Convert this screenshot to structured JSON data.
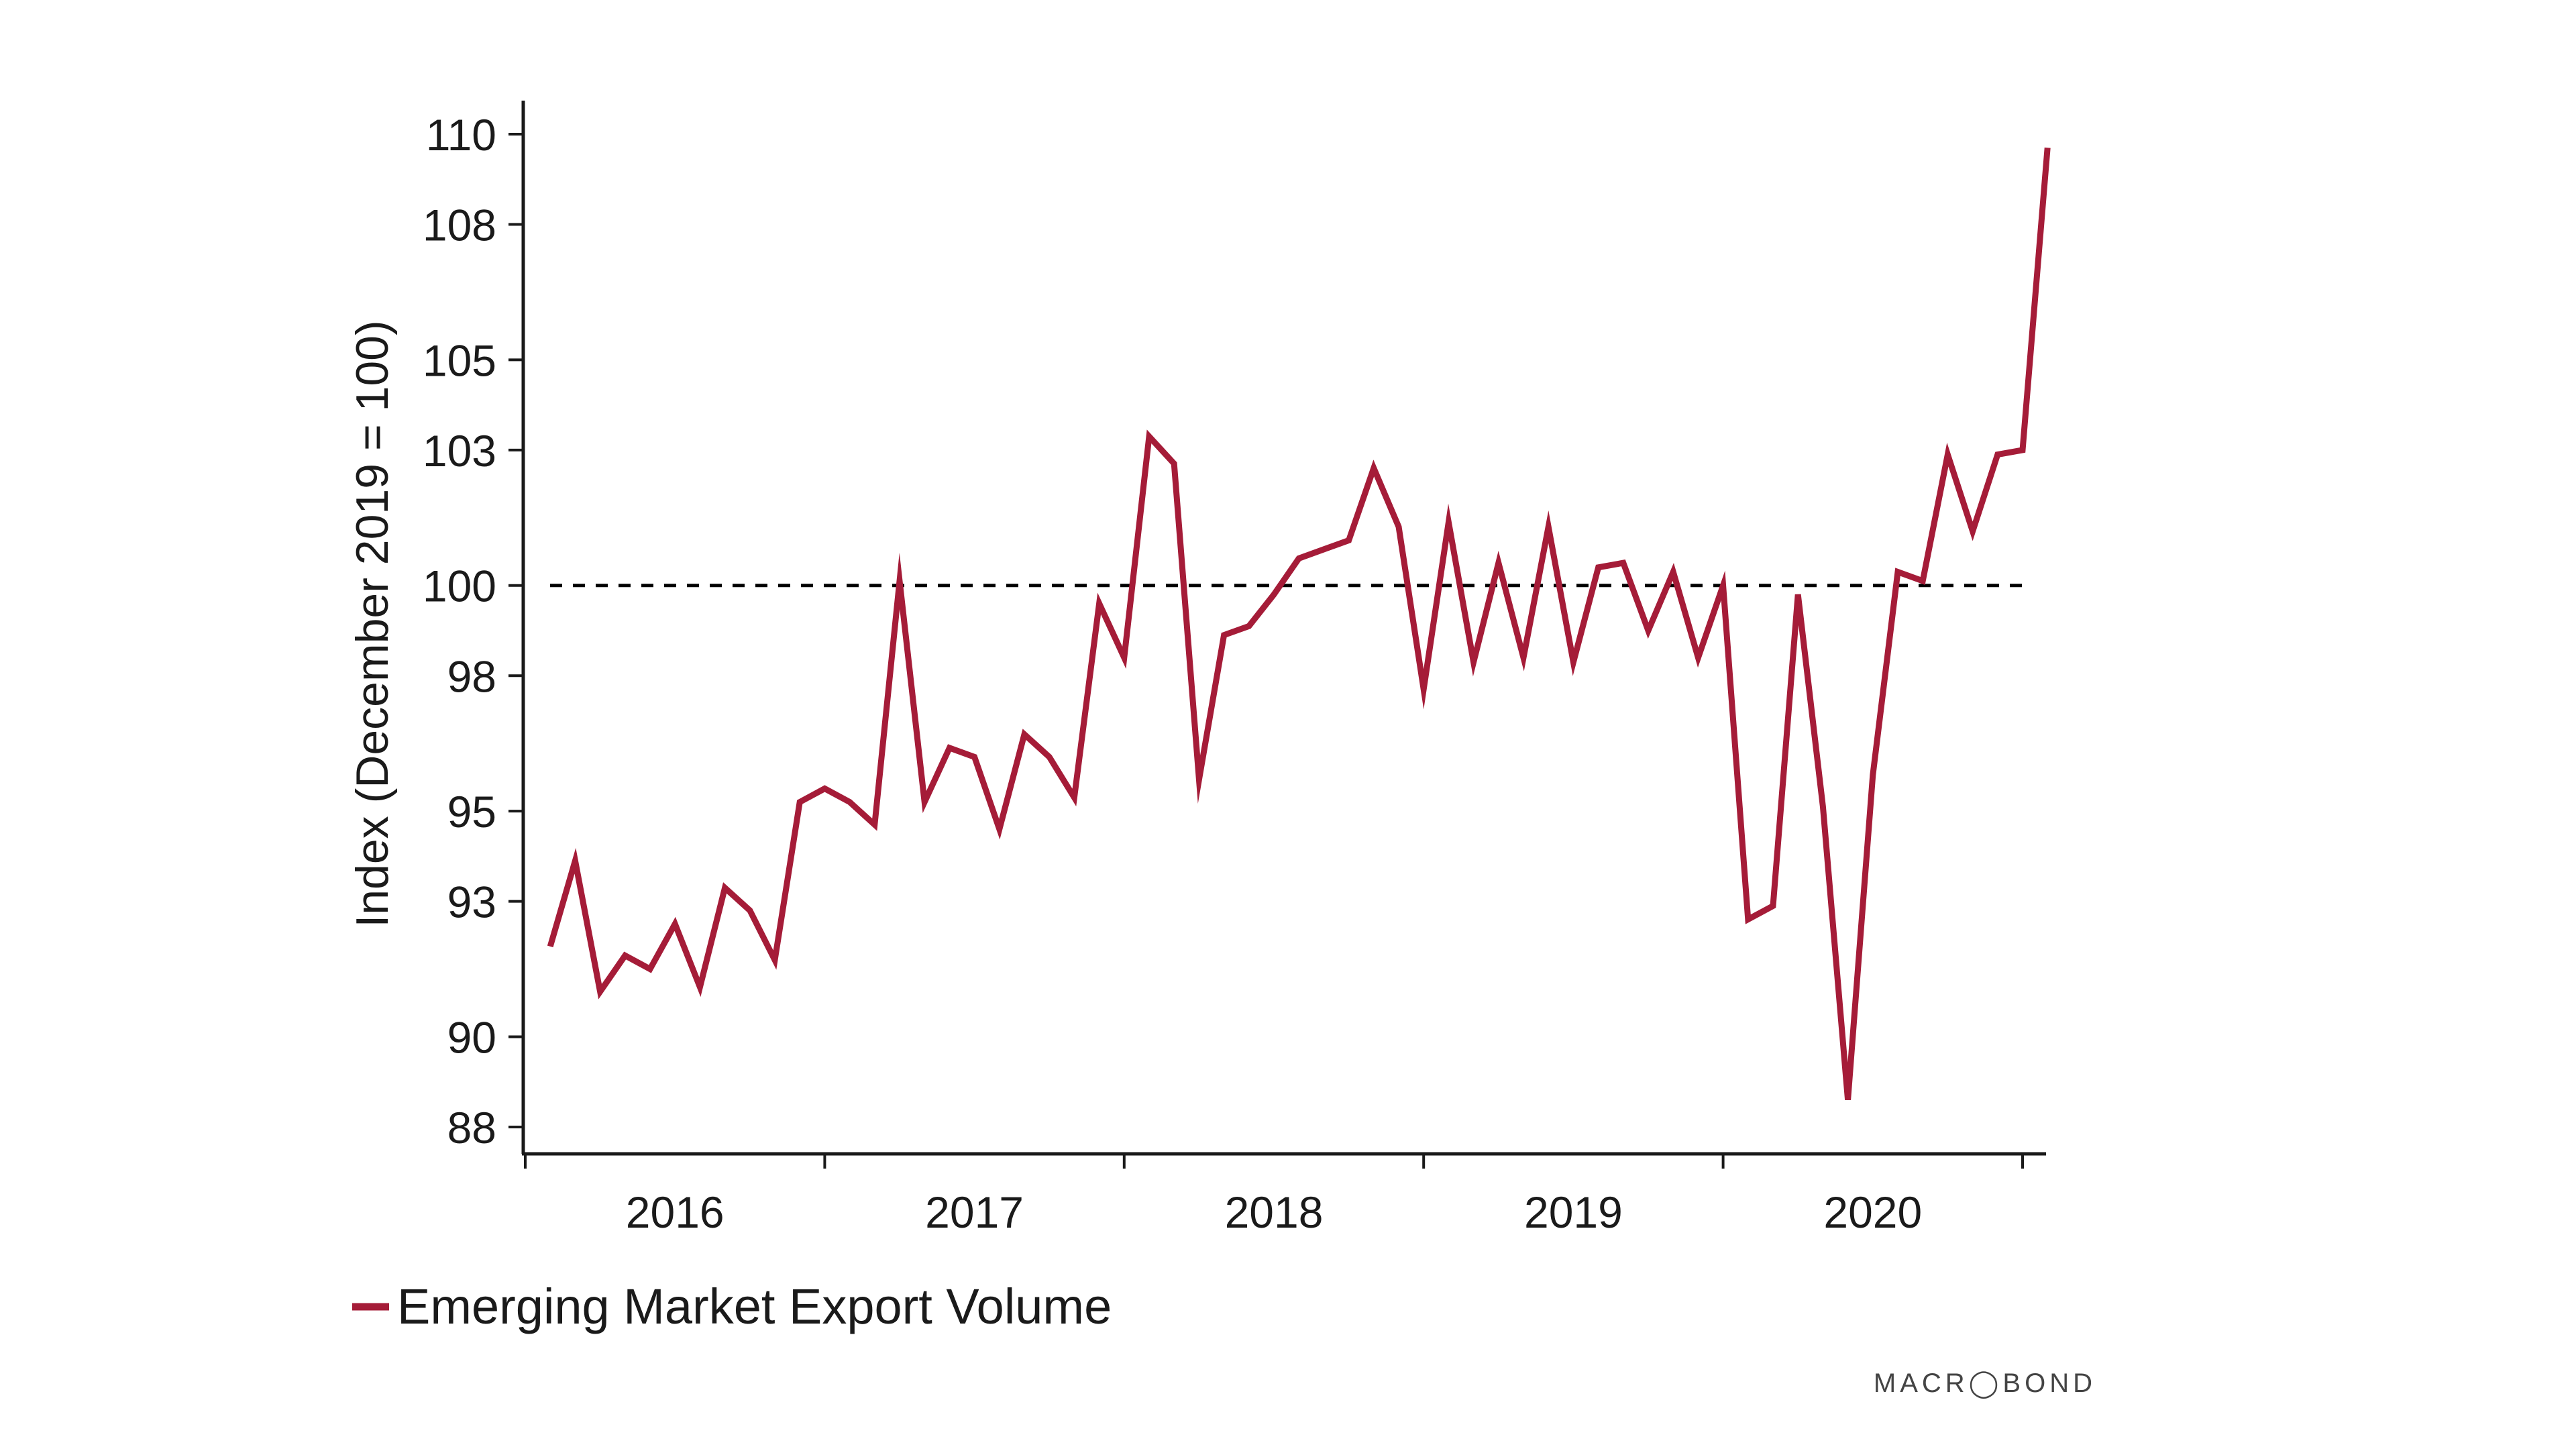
{
  "chart_data": {
    "type": "line",
    "title": "",
    "ylabel": "Index (December 2019 = 100)",
    "xlabel": "",
    "ylim": [
      87.5,
      110.5
    ],
    "y_ticks": [
      88,
      90,
      93,
      95,
      98,
      100,
      103,
      105,
      108,
      110
    ],
    "y_tick_labels": [
      "88",
      "90",
      "93",
      "95",
      "98",
      "100",
      "103",
      "105",
      "108",
      "110"
    ],
    "x_range": [
      "2015-12",
      "2020-12"
    ],
    "x_tick_boundaries": [
      "2015-12",
      "2016-12",
      "2017-12",
      "2018-12",
      "2019-12",
      "2020-12"
    ],
    "x_category_labels": [
      "2016",
      "2017",
      "2018",
      "2019",
      "2020"
    ],
    "grid": false,
    "reference_line": {
      "value": 100,
      "style": "dashed",
      "color": "#000000"
    },
    "legend_position": "bottom-left",
    "series": [
      {
        "name": "Emerging Market Export Volume",
        "color": "#a51c38",
        "x": [
          "2016-01",
          "2016-02",
          "2016-03",
          "2016-04",
          "2016-05",
          "2016-06",
          "2016-07",
          "2016-08",
          "2016-09",
          "2016-10",
          "2016-11",
          "2016-12",
          "2017-01",
          "2017-02",
          "2017-03",
          "2017-04",
          "2017-05",
          "2017-06",
          "2017-07",
          "2017-08",
          "2017-09",
          "2017-10",
          "2017-11",
          "2017-12",
          "2018-01",
          "2018-02",
          "2018-03",
          "2018-04",
          "2018-05",
          "2018-06",
          "2018-07",
          "2018-08",
          "2018-09",
          "2018-10",
          "2018-11",
          "2018-12",
          "2019-01",
          "2019-02",
          "2019-03",
          "2019-04",
          "2019-05",
          "2019-06",
          "2019-07",
          "2019-08",
          "2019-09",
          "2019-10",
          "2019-11",
          "2019-12",
          "2020-01",
          "2020-02",
          "2020-03",
          "2020-04",
          "2020-05",
          "2020-06",
          "2020-07",
          "2020-08",
          "2020-09",
          "2020-10",
          "2020-11",
          "2020-12",
          "2021-01"
        ],
        "values": [
          92.0,
          93.9,
          91.0,
          91.8,
          91.5,
          92.5,
          91.1,
          93.3,
          92.8,
          91.7,
          95.2,
          95.5,
          95.2,
          94.7,
          100.1,
          95.2,
          96.4,
          96.2,
          94.6,
          96.7,
          96.2,
          95.3,
          99.6,
          98.4,
          103.3,
          102.7,
          95.7,
          98.9,
          99.1,
          99.8,
          100.6,
          100.8,
          101.0,
          102.6,
          101.3,
          97.7,
          101.4,
          98.3,
          100.5,
          98.4,
          101.3,
          98.3,
          100.4,
          100.5,
          99.0,
          100.3,
          98.4,
          100.0,
          92.6,
          92.9,
          99.8,
          95.1,
          88.6,
          95.8,
          100.3,
          100.1,
          102.9,
          101.2,
          102.9,
          103.0,
          109.7
        ]
      }
    ]
  },
  "footer": {
    "brand_text": "MACR◯BOND"
  }
}
